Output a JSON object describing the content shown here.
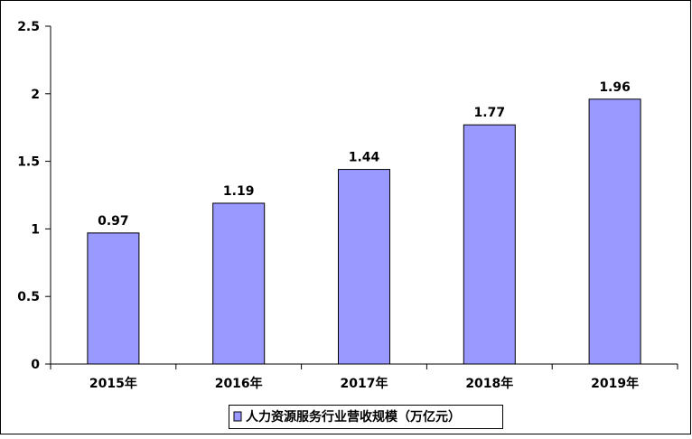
{
  "chart_data": {
    "type": "bar",
    "categories": [
      "2015年",
      "2016年",
      "2017年",
      "2018年",
      "2019年"
    ],
    "series": [
      {
        "name": "人力资源服务行业营收规模（万亿元）",
        "values": [
          0.97,
          1.19,
          1.44,
          1.77,
          1.96
        ],
        "data_labels": [
          "0.97",
          "1.19",
          "1.44",
          "1.77",
          "1.96"
        ]
      }
    ],
    "ylim": [
      0,
      2.5
    ],
    "yticks": [
      0,
      0.5,
      1,
      1.5,
      2,
      2.5
    ],
    "ytick_labels": [
      "0",
      "0.5",
      "1",
      "1.5",
      "2",
      "2.5"
    ],
    "grid": false,
    "legend_position": "bottom",
    "colors": {
      "bar_fill": "#9999ff",
      "bar_stroke": "#000000",
      "axis": "#000000",
      "frame": "#000000"
    }
  }
}
